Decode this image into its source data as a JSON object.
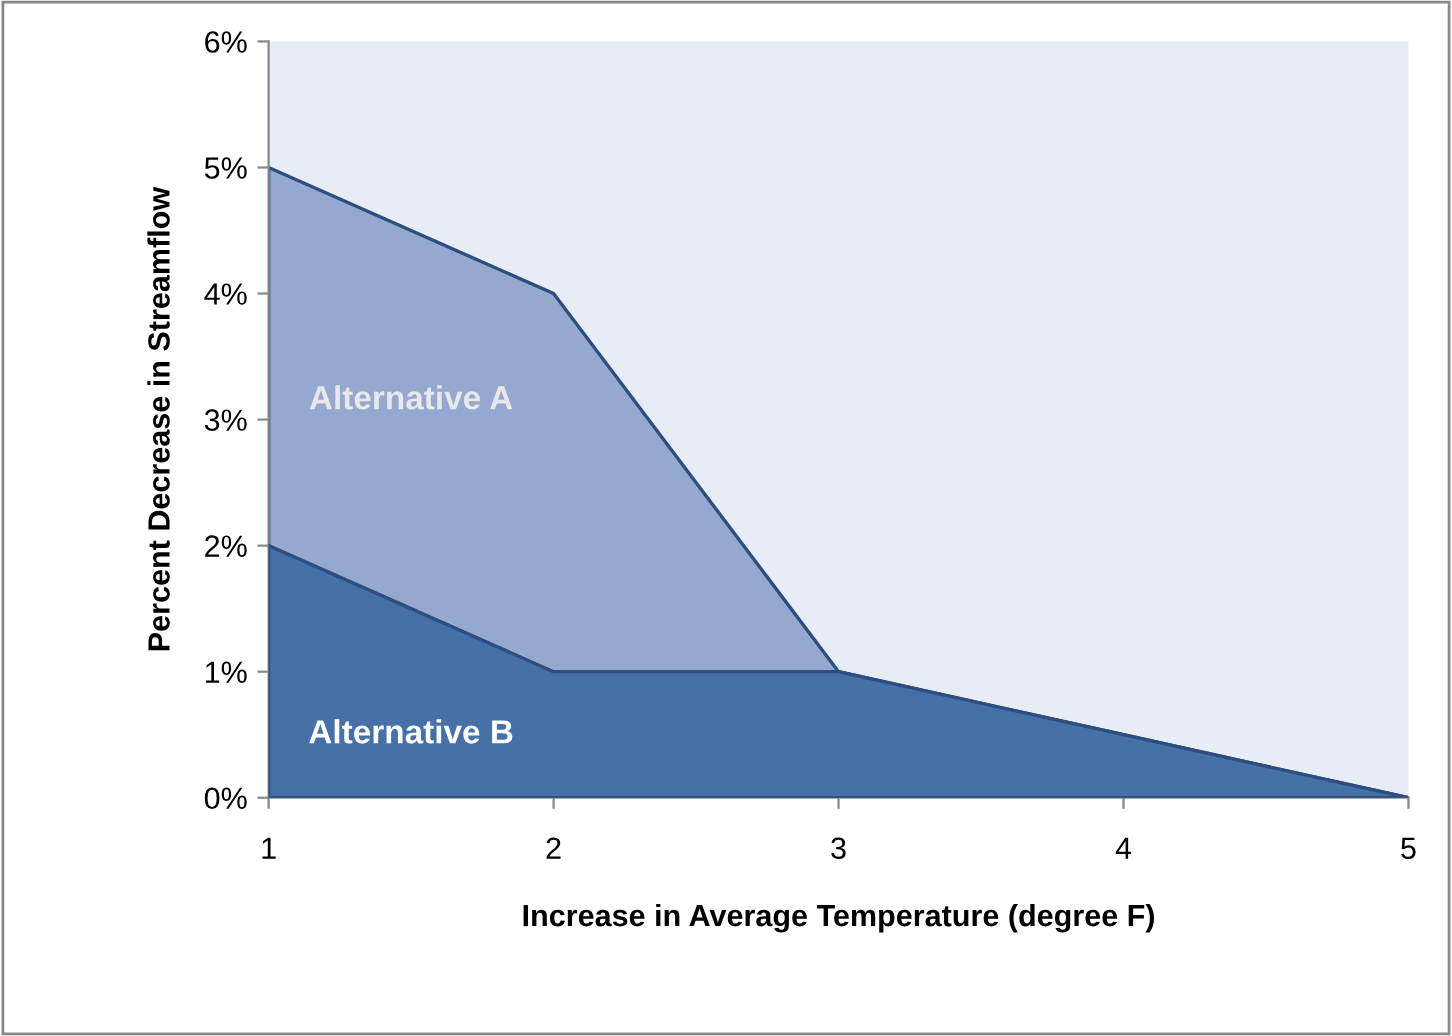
{
  "chart_data": {
    "type": "area",
    "xlabel": "Increase in Average Temperature (degree F)",
    "ylabel": "Percent Decrease in Streamflow",
    "x": [
      1,
      2,
      3,
      4,
      5
    ],
    "series": [
      {
        "name": "Alternative A",
        "color": "#95a8cf",
        "values": [
          5,
          4,
          1,
          0.5,
          0
        ]
      },
      {
        "name": "Alternative B",
        "color": "#4571a8",
        "values": [
          2,
          1,
          1,
          0.5,
          0
        ]
      }
    ],
    "xlim": [
      1,
      5
    ],
    "xticks": [
      1,
      2,
      3,
      4,
      5
    ],
    "ylim": [
      0,
      6
    ],
    "yticks": [
      {
        "value": 0,
        "label": "0%"
      },
      {
        "value": 1,
        "label": "1%"
      },
      {
        "value": 2,
        "label": "2%"
      },
      {
        "value": 3,
        "label": "3%"
      },
      {
        "value": 4,
        "label": "4%"
      },
      {
        "value": 5,
        "label": "5%"
      },
      {
        "value": 6,
        "label": "6%"
      }
    ],
    "grid": false,
    "legend": false
  }
}
